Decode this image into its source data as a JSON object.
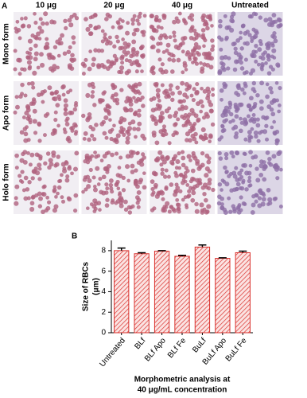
{
  "panel_a": {
    "label": "A",
    "columns": [
      "10 μg",
      "20 μg",
      "40 μg",
      "Untreated"
    ],
    "rows": [
      "Mono form",
      "Apo form",
      "Holo form"
    ]
  },
  "chart_data": {
    "type": "bar",
    "panel_label": "B",
    "categories": [
      "Untreated",
      "BLf",
      "BLf Apo",
      "BLf Fe",
      "BuLf",
      "BuLf Apo",
      "BuLf Fe"
    ],
    "values": [
      8.0,
      7.7,
      7.95,
      7.45,
      8.35,
      7.25,
      7.8
    ],
    "errors": [
      0.25,
      0.1,
      0.05,
      0.1,
      0.2,
      0.05,
      0.15
    ],
    "color": "#d9302c",
    "ylim": [
      0,
      9
    ],
    "yticks": [
      0,
      2,
      4,
      6,
      8
    ],
    "ylabel": [
      "Size of RBCs",
      "(μm)"
    ],
    "xlabel": [
      "Morphometric analysis at",
      "40 μg/mL concentration"
    ]
  }
}
